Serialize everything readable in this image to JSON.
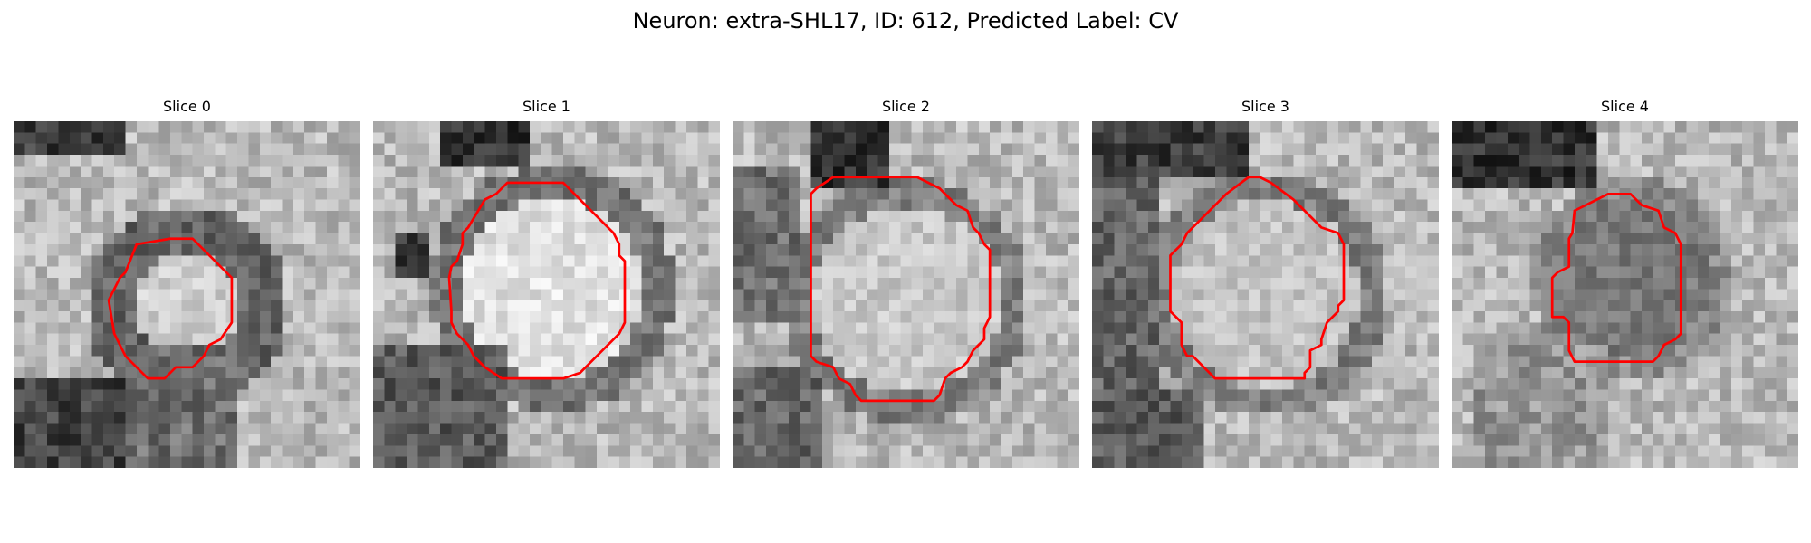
{
  "figure": {
    "title": "Neuron: extra-SHL17, ID: 612, Predicted Label: CV"
  },
  "colors": {
    "contour": "#ff0000",
    "background": "#ffffff"
  },
  "slices": [
    {
      "title": "Slice 0"
    },
    {
      "title": "Slice 1"
    },
    {
      "title": "Slice 2"
    },
    {
      "title": "Slice 3"
    },
    {
      "title": "Slice 4"
    }
  ]
}
